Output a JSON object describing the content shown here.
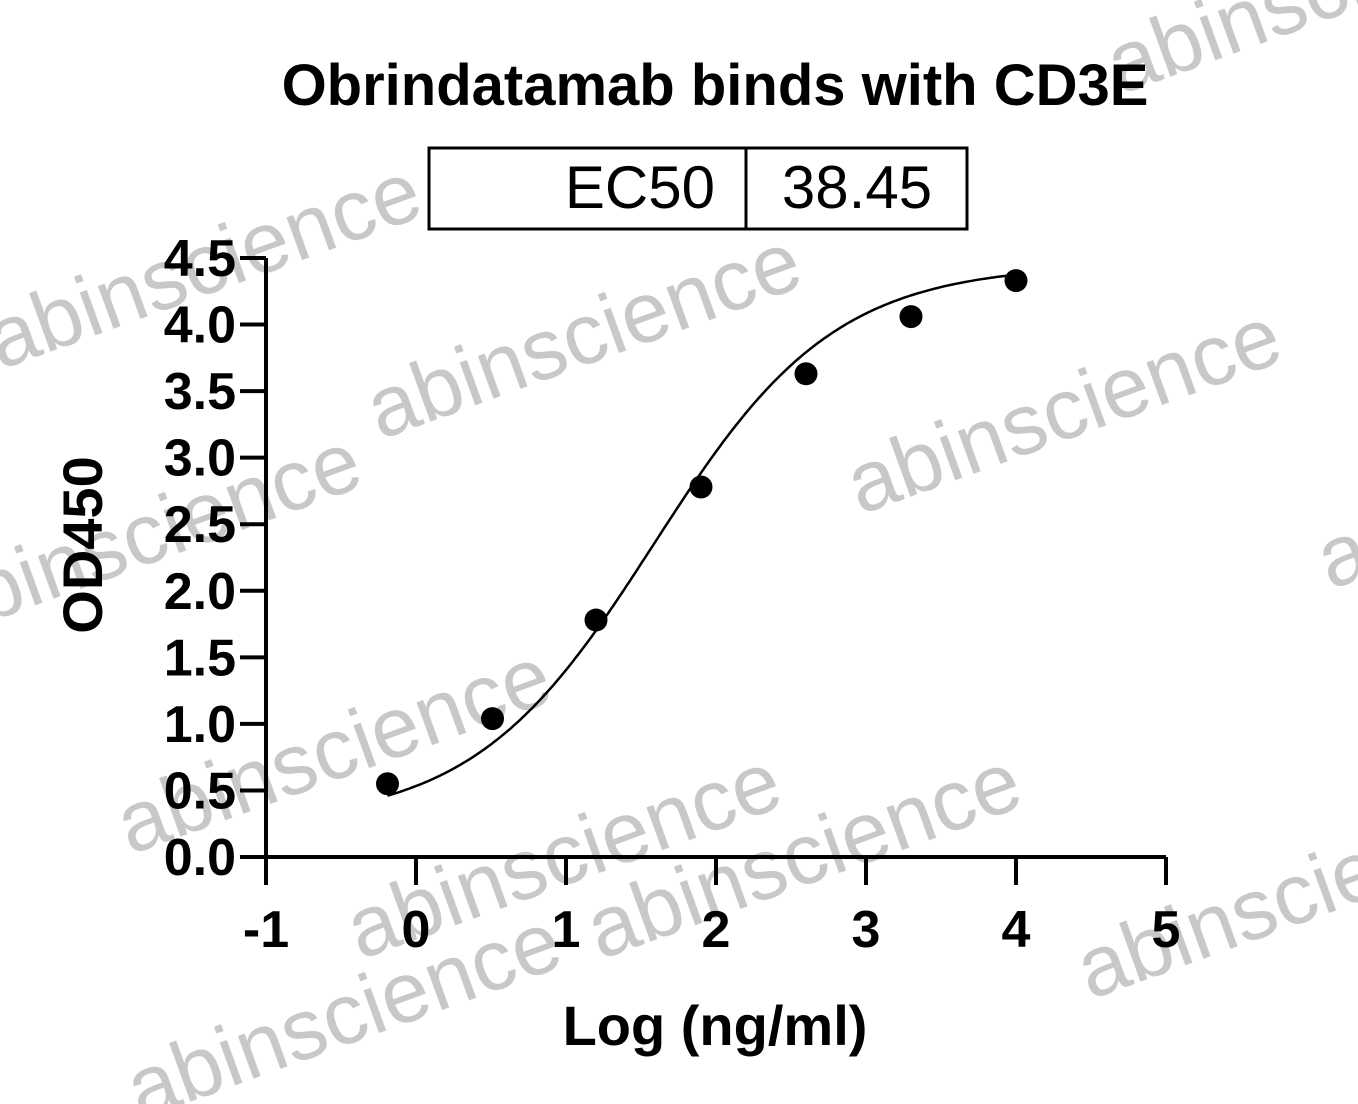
{
  "chart_data": {
    "type": "scatter",
    "title": "Obrindatamab binds with CD3E",
    "xlabel": "Log (ng/ml)",
    "ylabel": "OD450",
    "xlim": [
      -1,
      5
    ],
    "ylim": [
      0,
      4.5
    ],
    "x_ticks": [
      "-1",
      "0",
      "1",
      "2",
      "3",
      "4",
      "5"
    ],
    "y_ticks": [
      "0.0",
      "0.5",
      "1.0",
      "1.5",
      "2.0",
      "2.5",
      "3.0",
      "3.5",
      "4.0",
      "4.5"
    ],
    "grid": false,
    "series": [
      {
        "x": [
          -0.19,
          0.51,
          1.2,
          1.9,
          2.6,
          3.3,
          4.0
        ],
        "y": [
          0.55,
          1.04,
          1.78,
          2.78,
          3.63,
          4.06,
          4.33
        ]
      }
    ],
    "fit_curve": {
      "model": "4PL",
      "bottom": 0.25,
      "top": 4.45,
      "log_ec50": 1.585,
      "hill": 0.72
    },
    "results_table": {
      "label": "EC50",
      "value": "38.45"
    },
    "watermark_text": "abinscience"
  }
}
